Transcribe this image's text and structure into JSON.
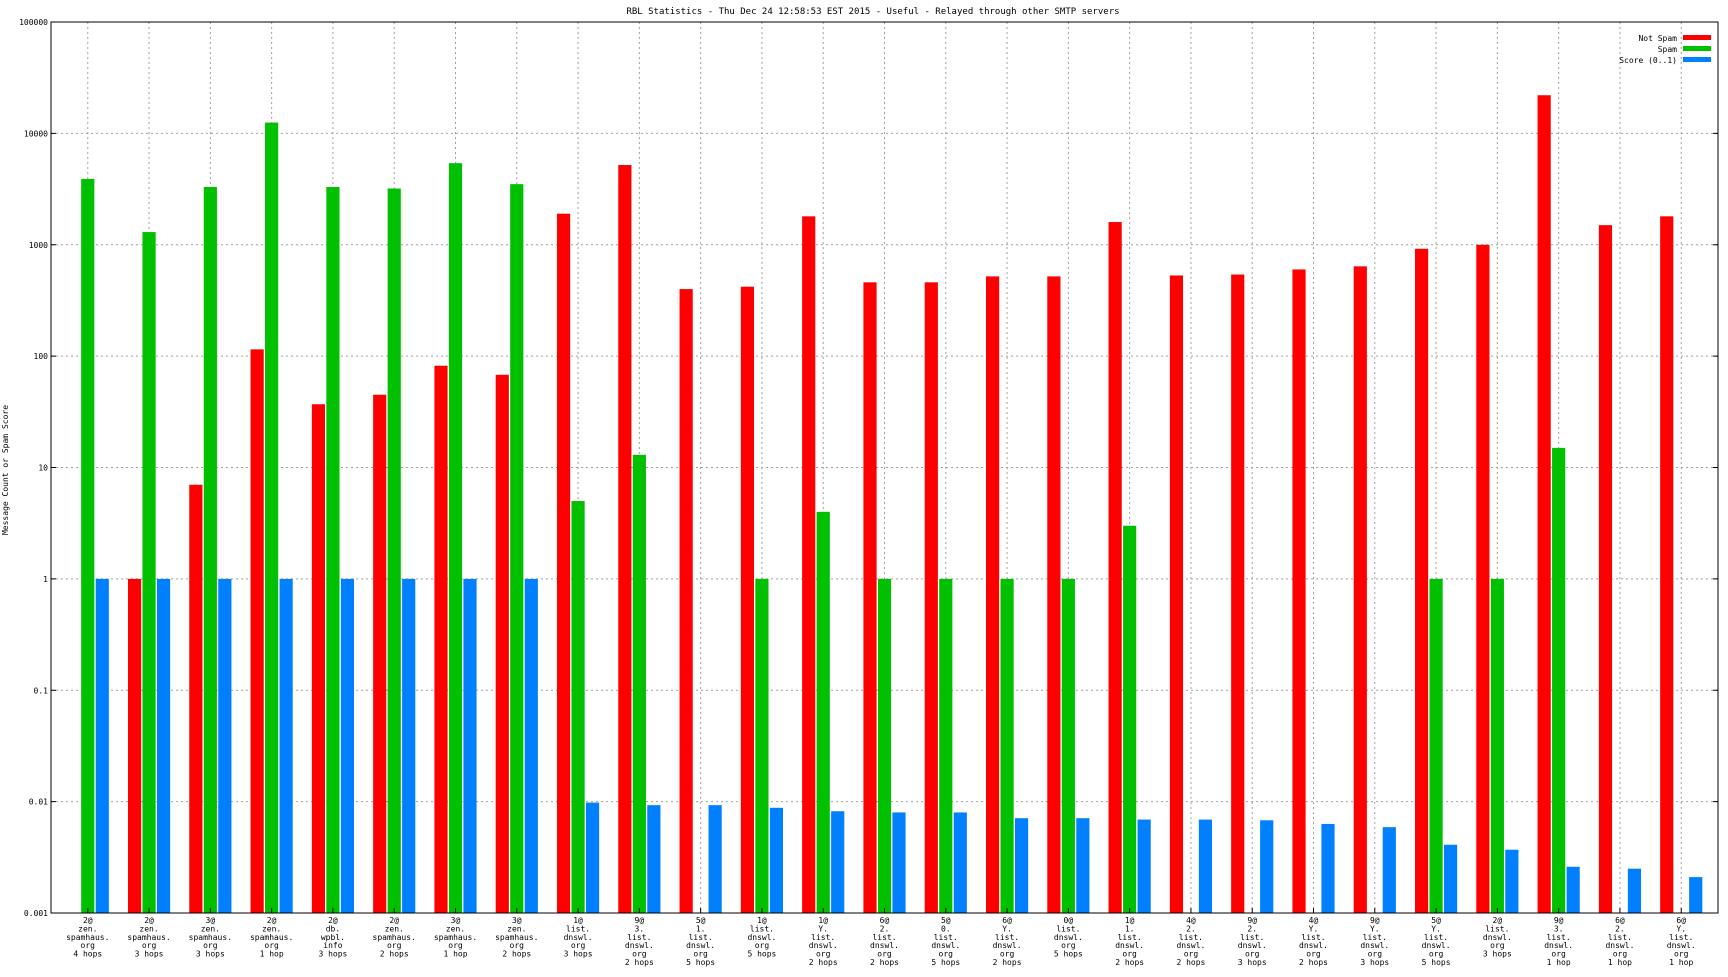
{
  "chart_data": {
    "type": "bar",
    "title": "RBL Statistics - Thu Dec 24 12:58:53 EST 2015 - Useful - Relayed through other SMTP servers",
    "xlabel": "",
    "ylabel": "Message Count or Spam Score",
    "yscale": "log",
    "ylim": [
      0.001,
      100000
    ],
    "yticks": [
      "0.001",
      "0.01",
      "0.1",
      "1",
      "10",
      "100",
      "1000",
      "10000",
      "100000"
    ],
    "grid": true,
    "legend_position": "top-right",
    "categories": [
      [
        "2@",
        "zen.",
        "spamhaus.",
        "org",
        "4 hops"
      ],
      [
        "2@",
        "zen.",
        "spamhaus.",
        "org",
        "3 hops"
      ],
      [
        "3@",
        "zen.",
        "spamhaus.",
        "org",
        "3 hops"
      ],
      [
        "2@",
        "zen.",
        "spamhaus.",
        "org",
        "1 hop"
      ],
      [
        "2@",
        "db.",
        "wpbl.",
        "info",
        "3 hops"
      ],
      [
        "2@",
        "zen.",
        "spamhaus.",
        "org",
        "2 hops"
      ],
      [
        "3@",
        "zen.",
        "spamhaus.",
        "org",
        "1 hop"
      ],
      [
        "3@",
        "zen.",
        "spamhaus.",
        "org",
        "2 hops"
      ],
      [
        "1@",
        "list.",
        "dnswl.",
        "org",
        "3 hops"
      ],
      [
        "9@",
        "3.",
        "list.",
        "dnswl.",
        "org",
        "2 hops"
      ],
      [
        "5@",
        "1.",
        "list.",
        "dnswl.",
        "org",
        "5 hops"
      ],
      [
        "1@",
        "list.",
        "dnswl.",
        "org",
        "5 hops"
      ],
      [
        "1@",
        "Y.",
        "list.",
        "dnswl.",
        "org",
        "2 hops"
      ],
      [
        "6@",
        "2.",
        "list.",
        "dnswl.",
        "org",
        "2 hops"
      ],
      [
        "5@",
        "0.",
        "list.",
        "dnswl.",
        "org",
        "5 hops"
      ],
      [
        "6@",
        "Y.",
        "list.",
        "dnswl.",
        "org",
        "2 hops"
      ],
      [
        "0@",
        "list.",
        "dnswl.",
        "org",
        "5 hops"
      ],
      [
        "1@",
        "1.",
        "list.",
        "dnswl.",
        "org",
        "2 hops"
      ],
      [
        "4@",
        "2.",
        "list.",
        "dnswl.",
        "org",
        "2 hops"
      ],
      [
        "9@",
        "2.",
        "list.",
        "dnswl.",
        "org",
        "3 hops"
      ],
      [
        "4@",
        "Y.",
        "list.",
        "dnswl.",
        "org",
        "2 hops"
      ],
      [
        "9@",
        "Y.",
        "list.",
        "dnswl.",
        "org",
        "3 hops"
      ],
      [
        "5@",
        "Y.",
        "list.",
        "dnswl.",
        "org",
        "5 hops"
      ],
      [
        "2@",
        "list.",
        "dnswl.",
        "org",
        "3 hops"
      ],
      [
        "9@",
        "3.",
        "list.",
        "dnswl.",
        "org",
        "1 hop"
      ],
      [
        "6@",
        "2.",
        "list.",
        "dnswl.",
        "org",
        "1 hop"
      ],
      [
        "6@",
        "Y.",
        "list.",
        "dnswl.",
        "org",
        "1 hop"
      ]
    ],
    "series": [
      {
        "name": "Not Spam",
        "color": "#ff0000",
        "values": [
          null,
          1,
          7,
          115,
          37,
          45,
          82,
          68,
          1900,
          5200,
          400,
          420,
          1800,
          460,
          460,
          520,
          520,
          1600,
          530,
          540,
          600,
          640,
          920,
          1000,
          22000,
          1500,
          1800
        ]
      },
      {
        "name": "Spam",
        "color": "#00c000",
        "values": [
          3900,
          1300,
          3300,
          12500,
          3300,
          3200,
          5400,
          3500,
          5,
          13,
          null,
          1,
          4,
          1,
          1,
          1,
          1,
          3,
          null,
          null,
          null,
          null,
          1,
          1,
          15,
          null,
          null
        ]
      },
      {
        "name": "Score (0..1)",
        "color": "#0080ff",
        "values": [
          1,
          1,
          1,
          1,
          1,
          1,
          1,
          1,
          0.0098,
          0.0093,
          0.0093,
          0.0088,
          0.0082,
          0.008,
          0.008,
          0.0071,
          0.0071,
          0.0069,
          0.0069,
          0.0068,
          0.0063,
          0.0059,
          0.0041,
          0.0037,
          0.0026,
          0.0025,
          0.0021
        ]
      }
    ]
  }
}
